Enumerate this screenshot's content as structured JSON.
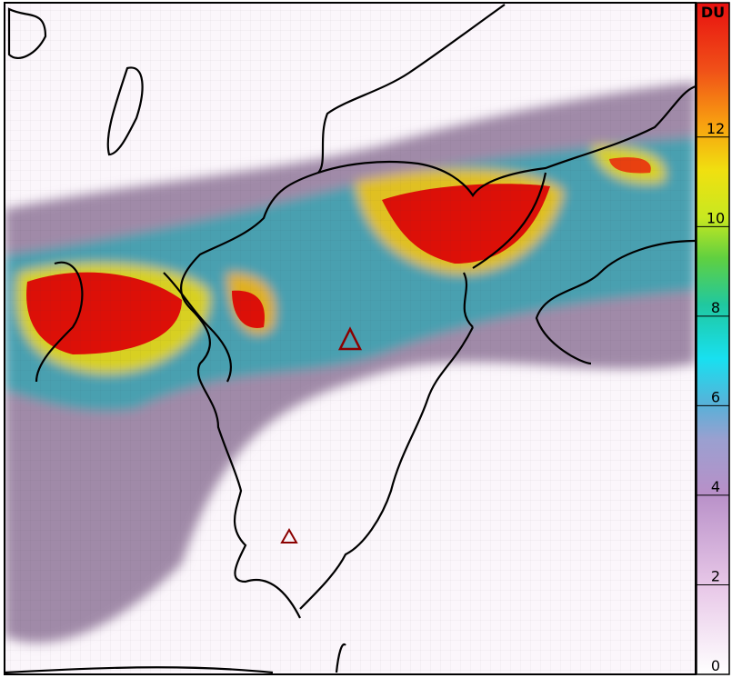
{
  "colorbar": {
    "unit": "DU",
    "lim": [
      0,
      15
    ],
    "ticks": [
      0,
      2,
      4,
      6,
      8,
      10,
      12
    ]
  }
}
